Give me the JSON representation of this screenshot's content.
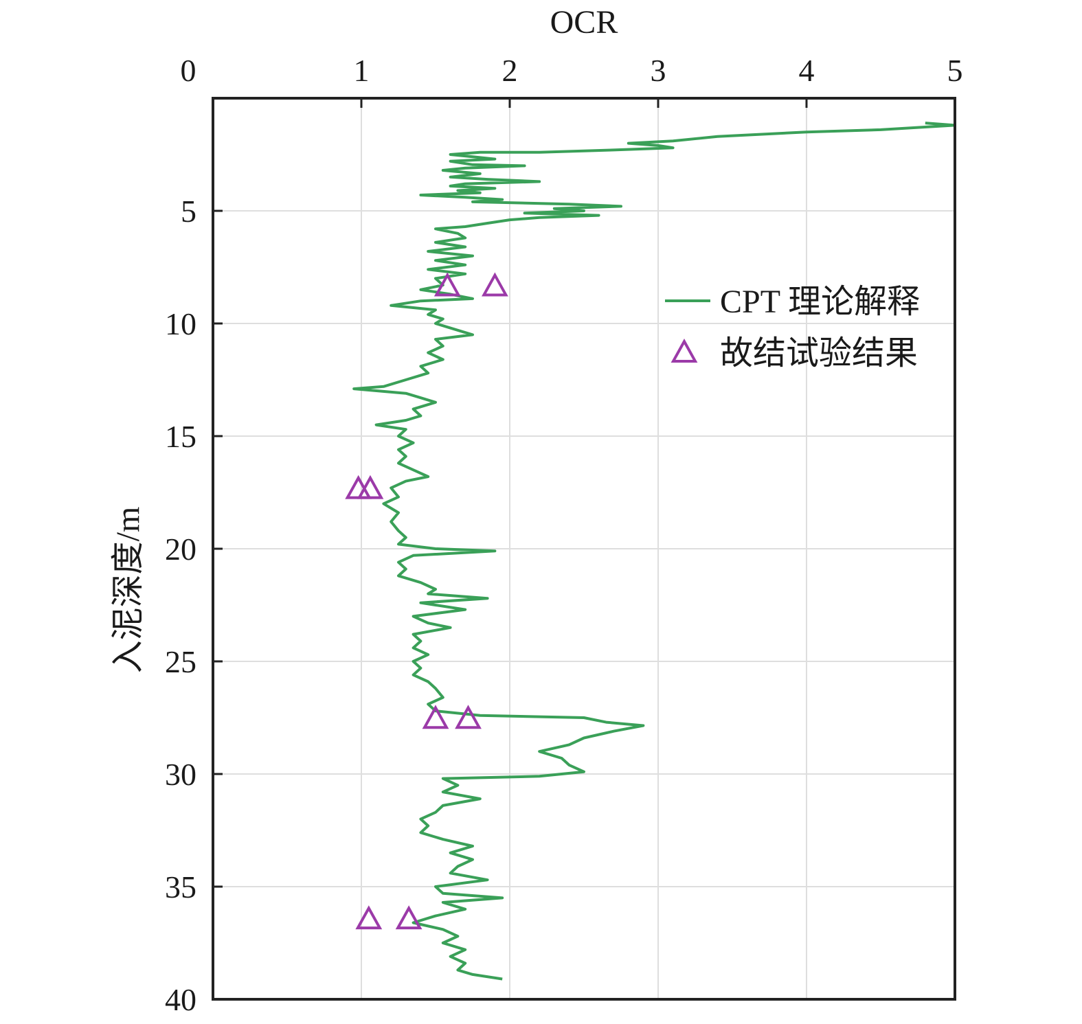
{
  "chart_data": {
    "type": "line",
    "title": "",
    "xlabel": "OCR",
    "ylabel": "入泥深度/m",
    "xlim": [
      0,
      5
    ],
    "ylim": [
      0,
      40
    ],
    "y_inverted": true,
    "x_axis_position": "top",
    "x_ticks": [
      0,
      1,
      2,
      3,
      4,
      5
    ],
    "x_tick_labels": [
      "0",
      "1",
      "2",
      "3",
      "4",
      "5"
    ],
    "y_ticks": [
      5,
      10,
      15,
      20,
      25,
      30,
      35,
      40
    ],
    "y_tick_labels": [
      "5",
      "10",
      "15",
      "20",
      "25",
      "30",
      "35",
      "40"
    ],
    "grid": true,
    "legend_position": "upper-right",
    "series": [
      {
        "name": "CPT 理论解释",
        "kind": "line",
        "color": "#3aa058",
        "points": [
          [
            4.8,
            1.1
          ],
          [
            5.0,
            1.2
          ],
          [
            4.5,
            1.4
          ],
          [
            4.0,
            1.5
          ],
          [
            3.4,
            1.7
          ],
          [
            3.1,
            1.9
          ],
          [
            2.8,
            2.0
          ],
          [
            3.0,
            2.1
          ],
          [
            3.1,
            2.2
          ],
          [
            2.7,
            2.3
          ],
          [
            2.2,
            2.4
          ],
          [
            1.8,
            2.4
          ],
          [
            1.6,
            2.5
          ],
          [
            1.75,
            2.6
          ],
          [
            1.9,
            2.7
          ],
          [
            1.6,
            2.8
          ],
          [
            1.75,
            2.95
          ],
          [
            2.1,
            3.0
          ],
          [
            1.7,
            3.1
          ],
          [
            1.55,
            3.2
          ],
          [
            1.8,
            3.35
          ],
          [
            1.6,
            3.5
          ],
          [
            1.85,
            3.6
          ],
          [
            2.2,
            3.7
          ],
          [
            1.7,
            3.8
          ],
          [
            1.6,
            3.9
          ],
          [
            1.9,
            4.0
          ],
          [
            1.65,
            4.1
          ],
          [
            1.8,
            4.2
          ],
          [
            1.4,
            4.3
          ],
          [
            1.7,
            4.4
          ],
          [
            1.95,
            4.5
          ],
          [
            1.75,
            4.6
          ],
          [
            2.4,
            4.7
          ],
          [
            2.75,
            4.8
          ],
          [
            2.3,
            4.9
          ],
          [
            2.5,
            5.0
          ],
          [
            2.1,
            5.1
          ],
          [
            2.6,
            5.2
          ],
          [
            2.2,
            5.3
          ],
          [
            2.0,
            5.4
          ],
          [
            1.85,
            5.55
          ],
          [
            1.7,
            5.7
          ],
          [
            1.5,
            5.8
          ],
          [
            1.65,
            6.0
          ],
          [
            1.7,
            6.2
          ],
          [
            1.5,
            6.4
          ],
          [
            1.7,
            6.6
          ],
          [
            1.45,
            6.8
          ],
          [
            1.75,
            7.0
          ],
          [
            1.5,
            7.2
          ],
          [
            1.7,
            7.4
          ],
          [
            1.45,
            7.6
          ],
          [
            1.7,
            7.8
          ],
          [
            1.5,
            8.0
          ],
          [
            1.55,
            8.3
          ],
          [
            1.4,
            8.5
          ],
          [
            1.6,
            8.7
          ],
          [
            1.75,
            8.9
          ],
          [
            1.4,
            9.0
          ],
          [
            1.2,
            9.2
          ],
          [
            1.5,
            9.4
          ],
          [
            1.45,
            9.6
          ],
          [
            1.55,
            9.8
          ],
          [
            1.5,
            10.0
          ],
          [
            1.6,
            10.2
          ],
          [
            1.75,
            10.5
          ],
          [
            1.5,
            10.7
          ],
          [
            1.55,
            11.0
          ],
          [
            1.45,
            11.3
          ],
          [
            1.55,
            11.6
          ],
          [
            1.4,
            11.9
          ],
          [
            1.45,
            12.2
          ],
          [
            1.3,
            12.5
          ],
          [
            1.15,
            12.8
          ],
          [
            0.95,
            12.9
          ],
          [
            1.3,
            13.1
          ],
          [
            1.4,
            13.3
          ],
          [
            1.5,
            13.5
          ],
          [
            1.35,
            13.8
          ],
          [
            1.4,
            14.1
          ],
          [
            1.3,
            14.3
          ],
          [
            1.1,
            14.5
          ],
          [
            1.3,
            14.7
          ],
          [
            1.25,
            15.0
          ],
          [
            1.35,
            15.3
          ],
          [
            1.25,
            15.6
          ],
          [
            1.3,
            15.9
          ],
          [
            1.25,
            16.2
          ],
          [
            1.35,
            16.5
          ],
          [
            1.45,
            16.8
          ],
          [
            1.3,
            17.0
          ],
          [
            1.2,
            17.3
          ],
          [
            1.25,
            17.7
          ],
          [
            1.15,
            18.0
          ],
          [
            1.25,
            18.4
          ],
          [
            1.2,
            18.8
          ],
          [
            1.25,
            19.2
          ],
          [
            1.3,
            19.5
          ],
          [
            1.25,
            19.8
          ],
          [
            1.5,
            20.0
          ],
          [
            1.9,
            20.1
          ],
          [
            1.35,
            20.3
          ],
          [
            1.25,
            20.6
          ],
          [
            1.3,
            20.9
          ],
          [
            1.25,
            21.2
          ],
          [
            1.4,
            21.5
          ],
          [
            1.5,
            21.8
          ],
          [
            1.45,
            22.0
          ],
          [
            1.85,
            22.2
          ],
          [
            1.4,
            22.4
          ],
          [
            1.7,
            22.7
          ],
          [
            1.35,
            23.0
          ],
          [
            1.45,
            23.3
          ],
          [
            1.6,
            23.5
          ],
          [
            1.35,
            23.8
          ],
          [
            1.4,
            24.1
          ],
          [
            1.35,
            24.4
          ],
          [
            1.45,
            24.7
          ],
          [
            1.35,
            25.0
          ],
          [
            1.4,
            25.3
          ],
          [
            1.35,
            25.6
          ],
          [
            1.45,
            25.9
          ],
          [
            1.5,
            26.2
          ],
          [
            1.55,
            26.6
          ],
          [
            1.45,
            26.9
          ],
          [
            1.5,
            27.2
          ],
          [
            1.8,
            27.4
          ],
          [
            2.5,
            27.5
          ],
          [
            2.65,
            27.7
          ],
          [
            2.9,
            27.85
          ],
          [
            2.7,
            28.1
          ],
          [
            2.5,
            28.4
          ],
          [
            2.4,
            28.7
          ],
          [
            2.2,
            29.0
          ],
          [
            2.35,
            29.3
          ],
          [
            2.4,
            29.6
          ],
          [
            2.5,
            29.9
          ],
          [
            2.2,
            30.1
          ],
          [
            1.55,
            30.2
          ],
          [
            1.65,
            30.5
          ],
          [
            1.55,
            30.8
          ],
          [
            1.8,
            31.1
          ],
          [
            1.55,
            31.4
          ],
          [
            1.5,
            31.7
          ],
          [
            1.4,
            32.0
          ],
          [
            1.45,
            32.3
          ],
          [
            1.4,
            32.6
          ],
          [
            1.55,
            32.9
          ],
          [
            1.75,
            33.2
          ],
          [
            1.6,
            33.5
          ],
          [
            1.75,
            33.8
          ],
          [
            1.65,
            34.1
          ],
          [
            1.6,
            34.4
          ],
          [
            1.85,
            34.7
          ],
          [
            1.5,
            35.0
          ],
          [
            1.55,
            35.3
          ],
          [
            1.95,
            35.5
          ],
          [
            1.55,
            35.7
          ],
          [
            1.7,
            36.0
          ],
          [
            1.5,
            36.3
          ],
          [
            1.35,
            36.6
          ],
          [
            1.55,
            36.9
          ],
          [
            1.65,
            37.2
          ],
          [
            1.55,
            37.5
          ],
          [
            1.7,
            37.8
          ],
          [
            1.6,
            38.1
          ],
          [
            1.7,
            38.4
          ],
          [
            1.65,
            38.7
          ],
          [
            1.75,
            38.9
          ],
          [
            1.95,
            39.1
          ]
        ]
      },
      {
        "name": "故结试验结果",
        "kind": "scatter",
        "marker": "triangle-open",
        "color": "#9b3aa8",
        "points": [
          [
            1.58,
            8.4
          ],
          [
            1.9,
            8.4
          ],
          [
            0.98,
            17.4
          ],
          [
            1.06,
            17.4
          ],
          [
            1.5,
            27.6
          ],
          [
            1.72,
            27.6
          ],
          [
            1.05,
            36.5
          ],
          [
            1.32,
            36.5
          ]
        ]
      }
    ]
  }
}
